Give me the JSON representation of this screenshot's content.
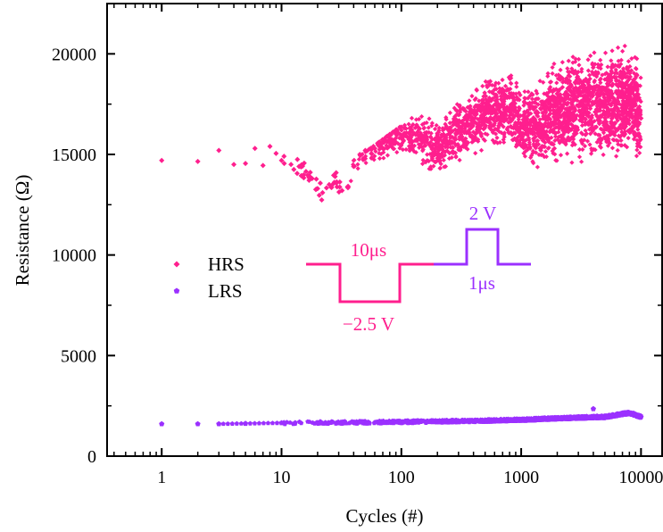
{
  "chart_data": {
    "type": "scatter",
    "xlabel": "Cycles (#)",
    "ylabel": "Resistance (Ω)",
    "x_scale": "log",
    "xlim": [
      0.35,
      15000
    ],
    "ylim": [
      0,
      22500
    ],
    "x_ticks": [
      1,
      10,
      100,
      1000,
      10000
    ],
    "x_tick_labels": [
      "1",
      "10",
      "100",
      "1000",
      "10000"
    ],
    "y_ticks": [
      0,
      5000,
      10000,
      15000,
      20000
    ],
    "y_tick_labels": [
      "0",
      "5000",
      "10000",
      "15000",
      "20000"
    ],
    "grid": false,
    "legend_position": "center-left",
    "series": [
      {
        "name": "HRS",
        "color": "#ff1f8e",
        "marker": "diamond",
        "sampled_points": [
          [
            1,
            14700
          ],
          [
            2,
            14650
          ],
          [
            3,
            15200
          ],
          [
            4,
            14500
          ],
          [
            5,
            14550
          ],
          [
            6,
            15300
          ],
          [
            7,
            14450
          ],
          [
            8,
            15400
          ],
          [
            9,
            15050
          ],
          [
            10,
            14700
          ],
          [
            12,
            14500
          ],
          [
            14,
            14400
          ],
          [
            16,
            14150
          ],
          [
            18,
            13800
          ],
          [
            20,
            13300
          ],
          [
            22,
            13100
          ],
          [
            25,
            13500
          ],
          [
            28,
            13900
          ],
          [
            32,
            13200
          ],
          [
            36,
            13400
          ],
          [
            40,
            14400
          ],
          [
            45,
            15000
          ],
          [
            50,
            15200
          ],
          [
            60,
            15300
          ],
          [
            70,
            15600
          ],
          [
            80,
            15800
          ],
          [
            100,
            15800
          ],
          [
            120,
            15900
          ],
          [
            150,
            15700
          ],
          [
            200,
            15300
          ],
          [
            300,
            16100
          ],
          [
            400,
            16600
          ],
          [
            500,
            17000
          ],
          [
            600,
            17100
          ],
          [
            800,
            17200
          ],
          [
            1000,
            16400
          ],
          [
            1500,
            16400
          ],
          [
            2000,
            17200
          ],
          [
            3000,
            17400
          ],
          [
            5000,
            17600
          ],
          [
            8000,
            17800
          ],
          [
            10000,
            16800
          ]
        ],
        "spread_max": [
          [
            300,
            18500
          ],
          [
            1000,
            19000
          ],
          [
            3000,
            20800
          ],
          [
            8000,
            20700
          ]
        ],
        "spread_min": [
          [
            300,
            14600
          ],
          [
            1000,
            14400
          ],
          [
            3000,
            14300
          ],
          [
            10000,
            14300
          ]
        ]
      },
      {
        "name": "LRS",
        "color": "#9b30ff",
        "marker": "pentagon",
        "sampled_points": [
          [
            1,
            1600
          ],
          [
            2,
            1600
          ],
          [
            3,
            1600
          ],
          [
            5,
            1620
          ],
          [
            10,
            1650
          ],
          [
            20,
            1660
          ],
          [
            50,
            1680
          ],
          [
            100,
            1700
          ],
          [
            200,
            1720
          ],
          [
            500,
            1760
          ],
          [
            1000,
            1800
          ],
          [
            2000,
            1880
          ],
          [
            4000,
            2350
          ],
          [
            5000,
            1950
          ],
          [
            8000,
            2150
          ],
          [
            10000,
            1950
          ]
        ]
      }
    ],
    "inset_pulse": {
      "reset": {
        "amplitude_label": "−2.5 V",
        "width_label": "10μs",
        "color": "#ff1f8e"
      },
      "set": {
        "amplitude_label": "2 V",
        "width_label": "1μs",
        "color": "#9b30ff"
      }
    }
  }
}
